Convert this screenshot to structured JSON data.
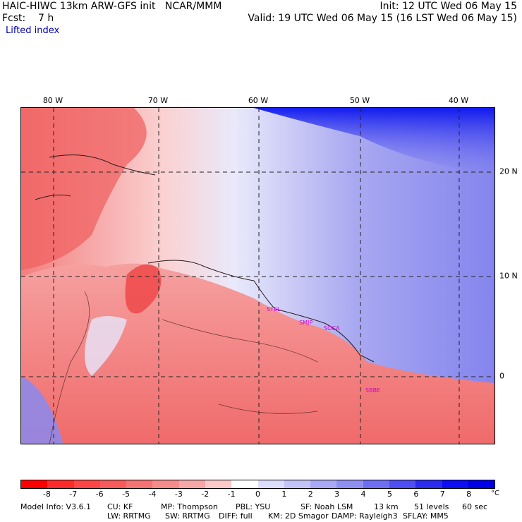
{
  "header": {
    "line1_left": "HAIC-HIWC 13km ARW-GFS init   NCAR/MMM",
    "line2_left": "Fcst:    7 h",
    "line1_right": "Init: 12 UTC Wed 06 May 15",
    "line2_right": "Valid: 19 UTC Wed 06 May 15 (16 LST Wed 06 May 15)"
  },
  "field_title": "Lifted index",
  "map": {
    "lon_labels": [
      "80 W",
      "70 W",
      "60 W",
      "50 W",
      "40 W"
    ],
    "lat_labels": [
      "20 N",
      "10 N",
      "0"
    ],
    "stations": [
      "SYEL",
      "SMJP",
      "SOCA",
      "SBBE"
    ],
    "colors": {
      "unstable": "#e8302f",
      "neutral": "#ffffff",
      "stable": "#0010ee",
      "station": "#d000d0"
    }
  },
  "colorbar": {
    "ticks": [
      "-8",
      "-7",
      "-6",
      "-5",
      "-4",
      "-3",
      "-2",
      "-1",
      "0",
      "1",
      "2",
      "3",
      "4",
      "5",
      "6",
      "7",
      "8"
    ],
    "unit": "°C",
    "colors": [
      "#ff0000",
      "#ff2a2a",
      "#ff4646",
      "#f75b5b",
      "#f47474",
      "#f58c8c",
      "#f6a7a7",
      "#fbc9c9",
      "#ffffff",
      "#dcdcfb",
      "#c3c3f7",
      "#a8a8f4",
      "#8f8ff2",
      "#6e6ef2",
      "#4e4ef3",
      "#2b2bf0",
      "#0e0ef5",
      "#0000e8"
    ]
  },
  "footer": {
    "line1": [
      "Model Info: V3.6.1",
      "CU: KF",
      "MP: Thompson",
      "PBL: YSU",
      "SF: Noah LSM",
      "13 km",
      "51 levels",
      "60 sec"
    ],
    "line2": [
      "LW: RRTMG",
      "SW: RRTMG",
      "DIFF: full",
      "KM: 2D Smagor",
      "DAMP: Rayleigh3",
      "SFLAY: MM5"
    ]
  }
}
